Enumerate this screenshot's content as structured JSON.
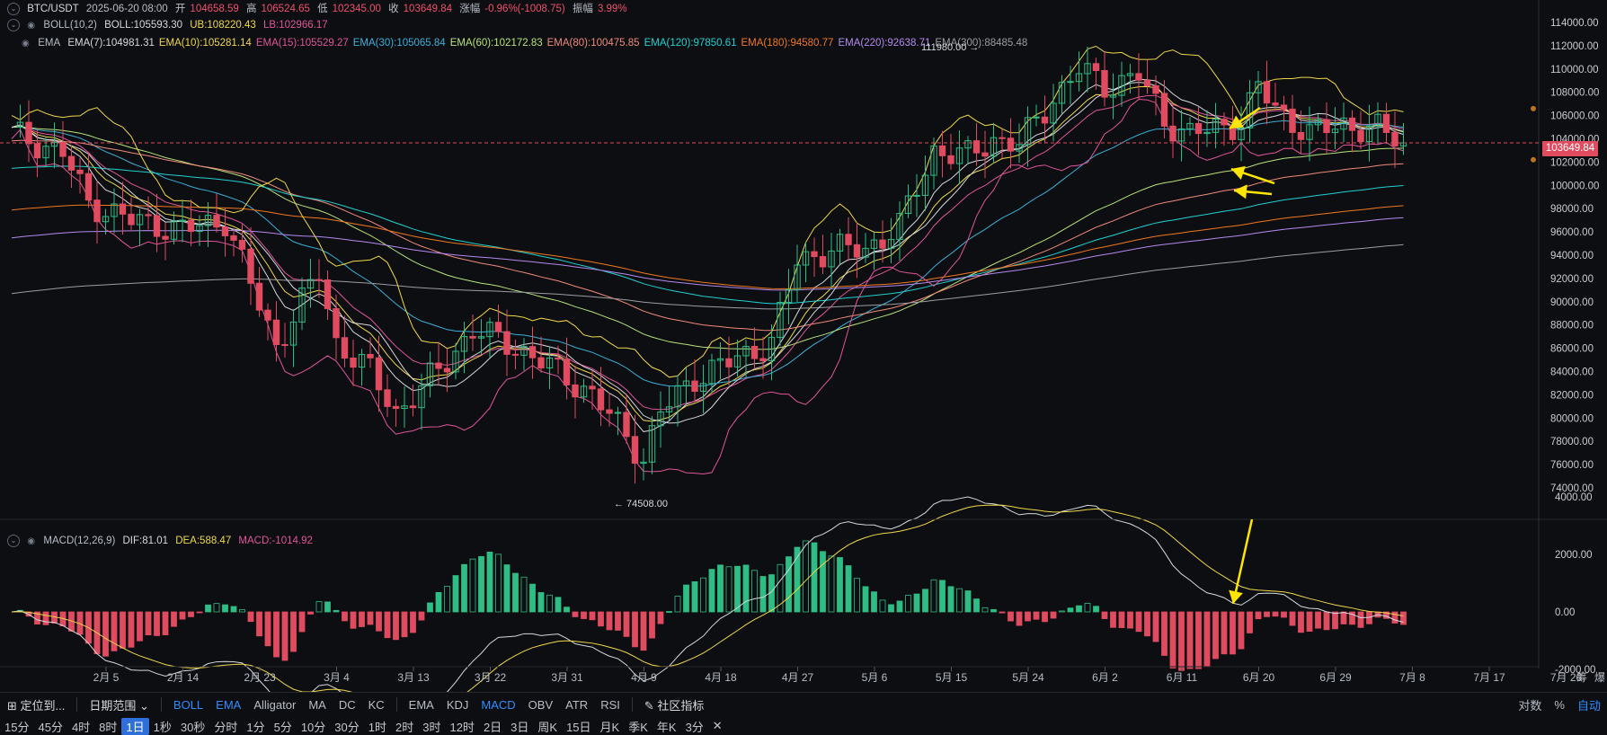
{
  "header": {
    "symbol": "BTC/USDT",
    "datetime": "2025-06-20 08:00",
    "open_label": "开",
    "open": "104658.59",
    "high_label": "高",
    "high": "106524.65",
    "low_label": "低",
    "low": "102345.00",
    "close_label": "收",
    "close": "103649.84",
    "change_label": "涨幅",
    "change": "-0.96%(-1008.75)",
    "amp_label": "振幅",
    "amp": "3.99%"
  },
  "boll": {
    "name": "BOLL(10,2)",
    "mid": "BOLL:105593.30",
    "ub": "UB:108220.43",
    "lb": "LB:102966.17",
    "colors": {
      "mid": "#d5d9de",
      "ub": "#f0d84a",
      "lb": "#e0559a"
    }
  },
  "ema": {
    "name": "EMA",
    "items": [
      {
        "label": "EMA(7):104981.31",
        "color": "#d5d9de"
      },
      {
        "label": "EMA(10):105281.14",
        "color": "#f0d84a"
      },
      {
        "label": "EMA(15):105529.27",
        "color": "#e0559a"
      },
      {
        "label": "EMA(30):105065.84",
        "color": "#3ab0d8"
      },
      {
        "label": "EMA(60):102172.83",
        "color": "#b9e37a"
      },
      {
        "label": "EMA(80):100475.85",
        "color": "#f08a7a"
      },
      {
        "label": "EMA(120):97850.61",
        "color": "#20d1d1"
      },
      {
        "label": "EMA(180):94580.77",
        "color": "#f0781e"
      },
      {
        "label": "EMA(220):92638.71",
        "color": "#b28af0"
      },
      {
        "label": "EMA(300):88485.48",
        "color": "#9a9da3"
      }
    ]
  },
  "macd": {
    "name": "MACD(12,26,9)",
    "dif": "DIF:81.01",
    "dea": "DEA:588.47",
    "macd": "MACD:-1014.92"
  },
  "price_axis": [
    "114000.00",
    "112000.00",
    "110000.00",
    "108000.00",
    "106000.00",
    "104000.00",
    "102000.00",
    "100000.00",
    "98000.00",
    "96000.00",
    "94000.00",
    "92000.00",
    "90000.00",
    "88000.00",
    "86000.00",
    "84000.00",
    "82000.00",
    "80000.00",
    "78000.00",
    "76000.00",
    "74000.00"
  ],
  "current_price": "103649.84",
  "macd_axis": [
    "4000.00",
    "2000.00",
    "0.00",
    "-2000.00"
  ],
  "date_axis": [
    "2月 5",
    "2月 14",
    "2月 23",
    "3月 4",
    "3月 13",
    "3月 22",
    "3月 31",
    "4月 9",
    "4月 18",
    "4月 27",
    "5月 6",
    "5月 15",
    "5月 24",
    "6月 2",
    "6月 11",
    "6月 20",
    "6月 29",
    "7月 8",
    "7月 17",
    "7月 26"
  ],
  "corner_label": "筹",
  "corner_label2": "爆",
  "annotations": {
    "high": "111980.00 →",
    "low": "← 74508.00"
  },
  "toolbar": {
    "locate": "定位到...",
    "range": "日期范围",
    "main_indicators": [
      {
        "label": "BOLL",
        "active": true
      },
      {
        "label": "EMA",
        "active": true
      },
      {
        "label": "Alligator",
        "active": false
      },
      {
        "label": "MA",
        "active": false
      },
      {
        "label": "DC",
        "active": false
      },
      {
        "label": "KC",
        "active": false
      }
    ],
    "sub_indicators": [
      {
        "label": "EMA",
        "active": false
      },
      {
        "label": "KDJ",
        "active": false
      },
      {
        "label": "MACD",
        "active": true
      },
      {
        "label": "OBV",
        "active": false
      },
      {
        "label": "ATR",
        "active": false
      },
      {
        "label": "RSI",
        "active": false
      }
    ],
    "community": "社区指标",
    "right": [
      "对数",
      "%",
      "自动"
    ]
  },
  "timeframes": [
    {
      "label": "15分"
    },
    {
      "label": "45分"
    },
    {
      "label": "4时"
    },
    {
      "label": "8时"
    },
    {
      "label": "1日",
      "active": true
    },
    {
      "label": "1秒"
    },
    {
      "label": "30秒"
    },
    {
      "label": "分时"
    },
    {
      "label": "1分"
    },
    {
      "label": "5分"
    },
    {
      "label": "10分"
    },
    {
      "label": "30分"
    },
    {
      "label": "1时"
    },
    {
      "label": "2时"
    },
    {
      "label": "3时"
    },
    {
      "label": "12时"
    },
    {
      "label": "2日"
    },
    {
      "label": "3日"
    },
    {
      "label": "周K"
    },
    {
      "label": "15日"
    },
    {
      "label": "月K"
    },
    {
      "label": "季K"
    },
    {
      "label": "年K"
    },
    {
      "label": "3分"
    },
    {
      "label": "✕"
    }
  ]
}
